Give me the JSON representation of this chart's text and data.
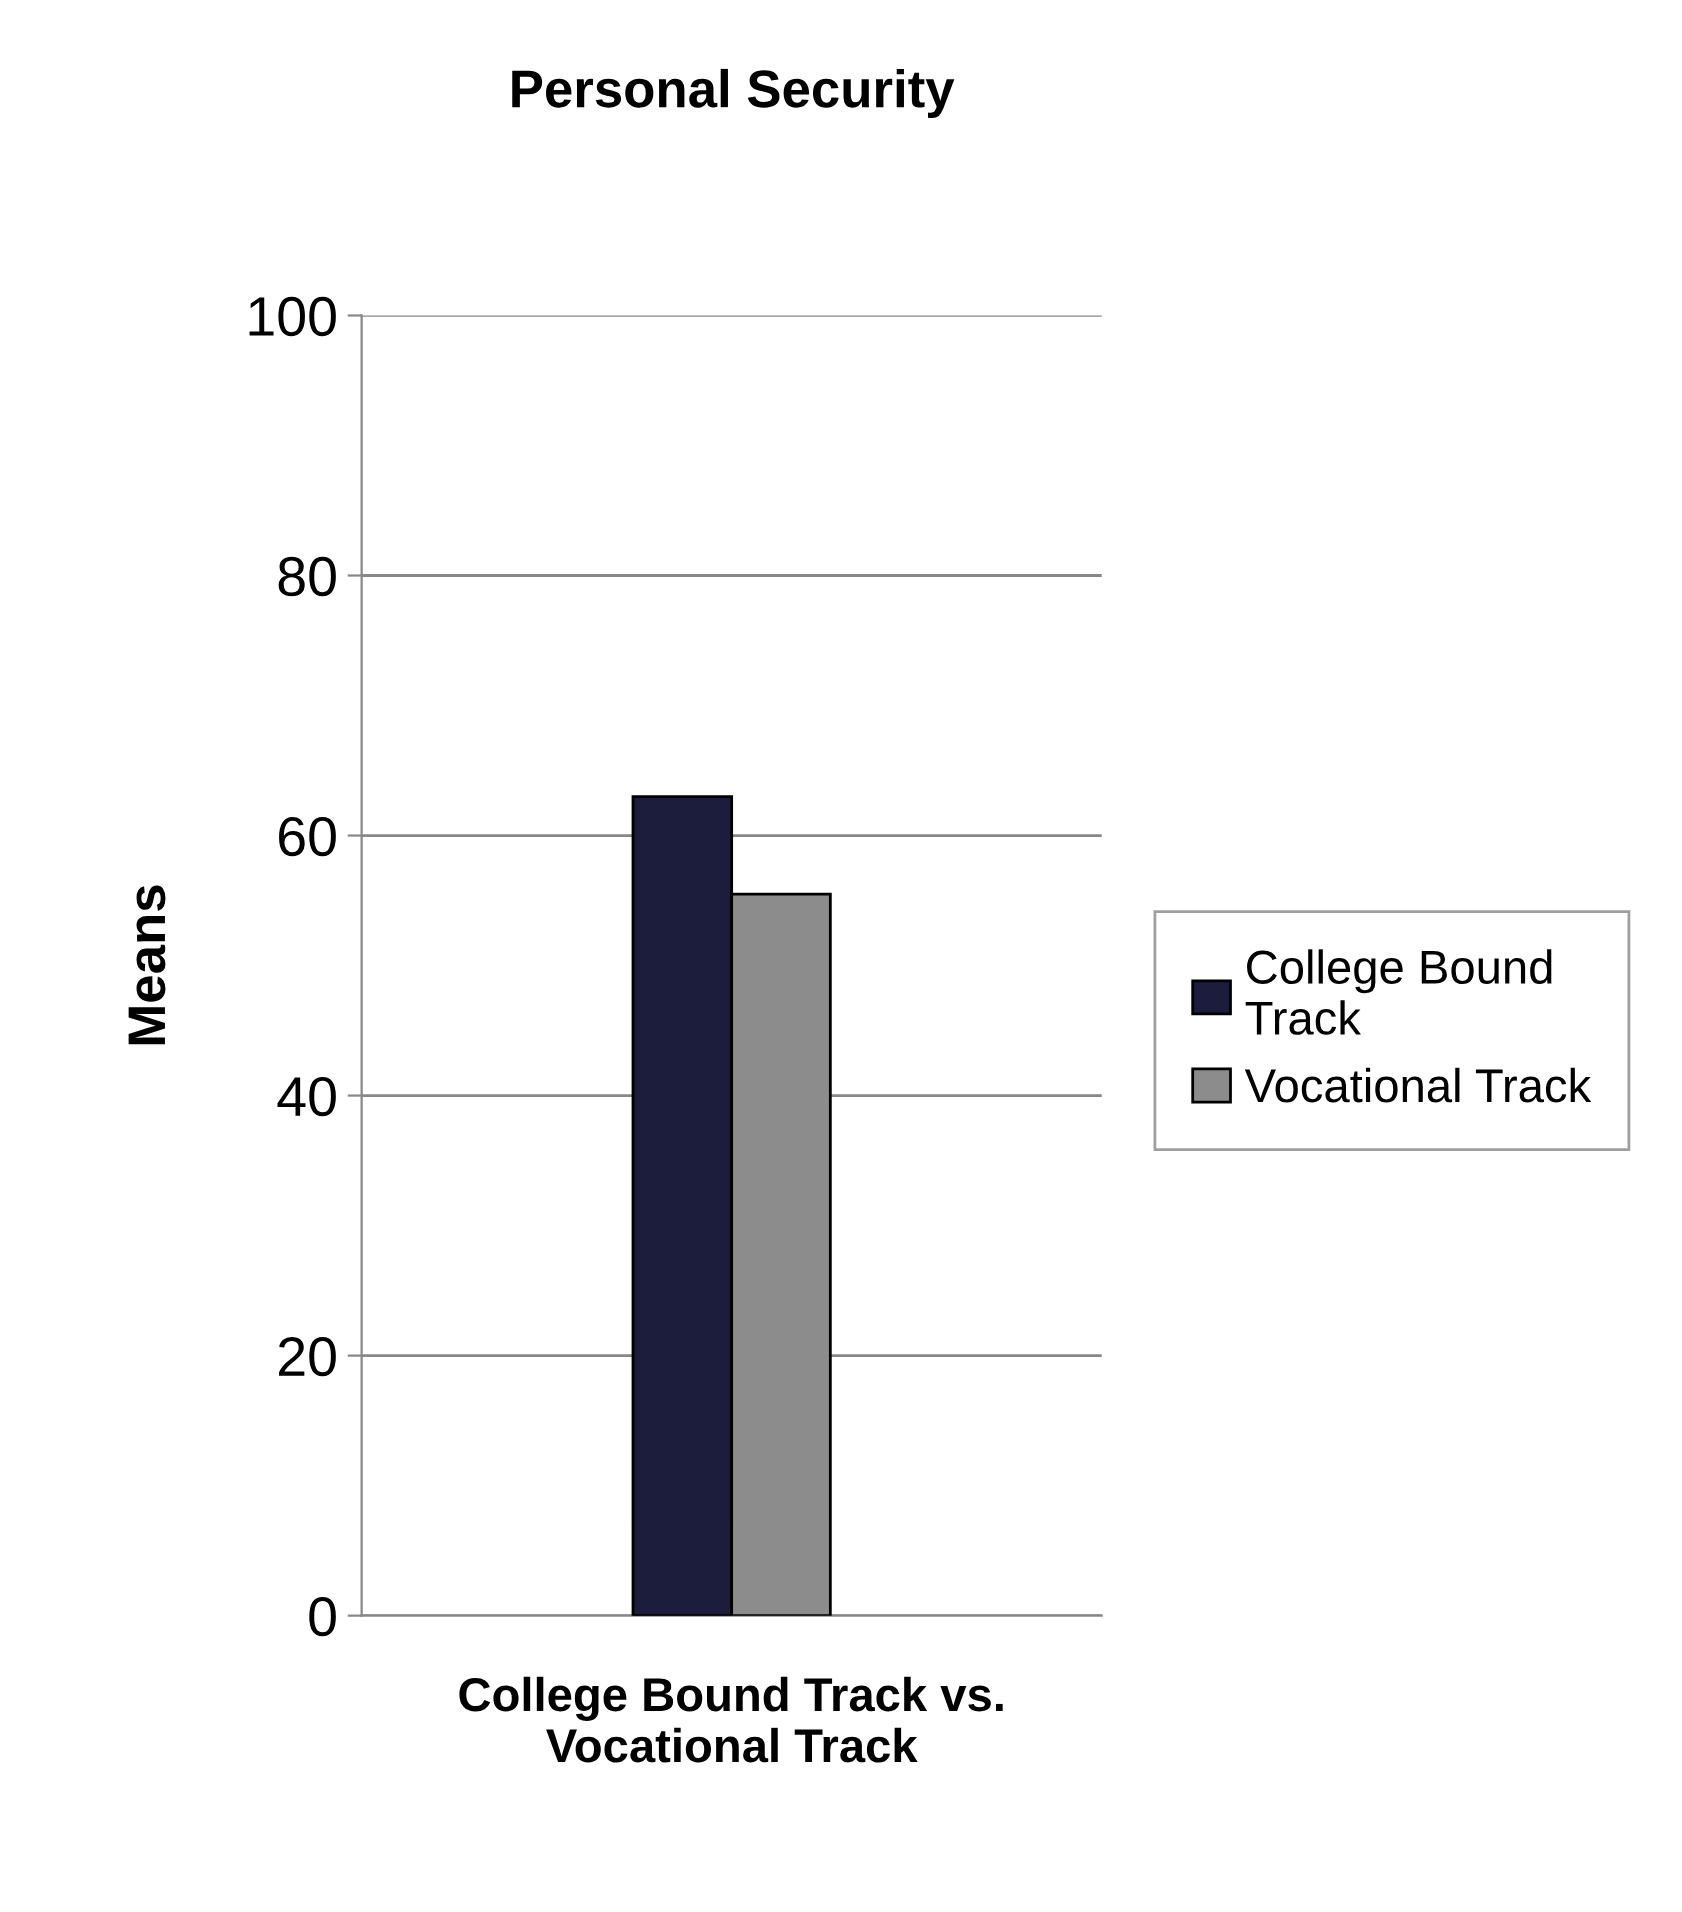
{
  "chart_data": {
    "type": "bar",
    "title": "Personal Security",
    "ylabel": "Means",
    "categories": [
      "College Bound Track vs.\nVocational Track"
    ],
    "series": [
      {
        "name": "College Bound\nTrack",
        "color": "#1c1c3c",
        "values": [
          63
        ]
      },
      {
        "name": "Vocational Track",
        "color": "#8c8c8c",
        "values": [
          55.5
        ]
      }
    ],
    "ylim": [
      0,
      100
    ],
    "yticks": [
      0,
      20,
      40,
      60,
      80,
      100
    ],
    "grid": "y",
    "legend": "right"
  }
}
